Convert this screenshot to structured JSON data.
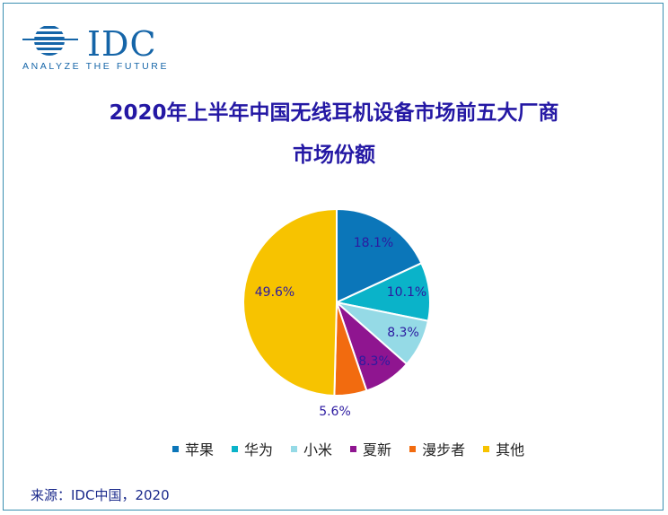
{
  "logo": {
    "word": "IDC",
    "tagline": "ANALYZE THE FUTURE",
    "color": "#1565a8"
  },
  "title_line1": "2020年上半年中国无线耳机设备市场前五大厂商",
  "title_line2": "市场份额",
  "source": "来源：IDC中国，2020",
  "chart_data": {
    "type": "pie",
    "title": "2020年上半年中国无线耳机设备市场前五大厂商市场份额",
    "unit": "%",
    "start_angle_deg": 0,
    "direction": "clockwise",
    "legend_position": "bottom",
    "slices": [
      {
        "label": "苹果",
        "value": 18.1,
        "display": "18.1%",
        "color": "#0b76b9",
        "label_color": "#2c1aa0"
      },
      {
        "label": "华为",
        "value": 10.1,
        "display": "10.1%",
        "color": "#0ab3c9",
        "label_color": "#2c1aa0"
      },
      {
        "label": "小米",
        "value": 8.3,
        "display": "8.3%",
        "color": "#95dae6",
        "label_color": "#2c1aa0"
      },
      {
        "label": "夏新",
        "value": 8.3,
        "display": "8.3%",
        "color": "#8f1590",
        "label_color": "#2c1aa0"
      },
      {
        "label": "漫步者",
        "value": 5.6,
        "display": "5.6%",
        "color": "#f26b0f",
        "label_color": "#2c1aa0"
      },
      {
        "label": "其他",
        "value": 49.6,
        "display": "49.6%",
        "color": "#f7c300",
        "label_color": "#2c1aa0"
      }
    ]
  }
}
